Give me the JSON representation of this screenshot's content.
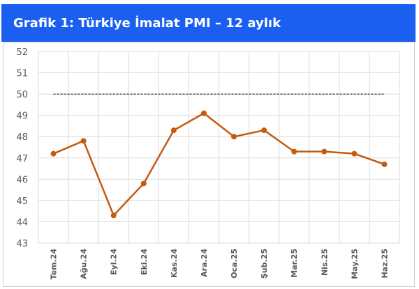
{
  "header": {
    "title": "Grafik 1: Türkiye İmalat PMI – 12 aylık"
  },
  "colors": {
    "header_bg": "#1a5ff0",
    "line": "#c55a11",
    "grid": "#d9d9d9",
    "reference": "#000000"
  },
  "chart_data": {
    "type": "line",
    "title": "Grafik 1: Türkiye İmalat PMI – 12 aylık",
    "categories": [
      "Tem.24",
      "Ağu.24",
      "Eyl.24",
      "Eki.24",
      "Kas.24",
      "Ara.24",
      "Oca.25",
      "Şub.25",
      "Mar.25",
      "Nis.25",
      "May.25",
      "Haz.25"
    ],
    "series": [
      {
        "values": [
          47.2,
          47.8,
          44.3,
          45.8,
          48.3,
          49.1,
          48.0,
          48.3,
          47.3,
          47.3,
          47.2,
          46.7
        ]
      }
    ],
    "reference_line": {
      "y": 50,
      "style": "dashed"
    },
    "ylim": [
      43,
      52
    ],
    "yticks": [
      43,
      44,
      45,
      46,
      47,
      48,
      49,
      50,
      51,
      52
    ],
    "grid": true,
    "xlabel": "",
    "ylabel": ""
  }
}
